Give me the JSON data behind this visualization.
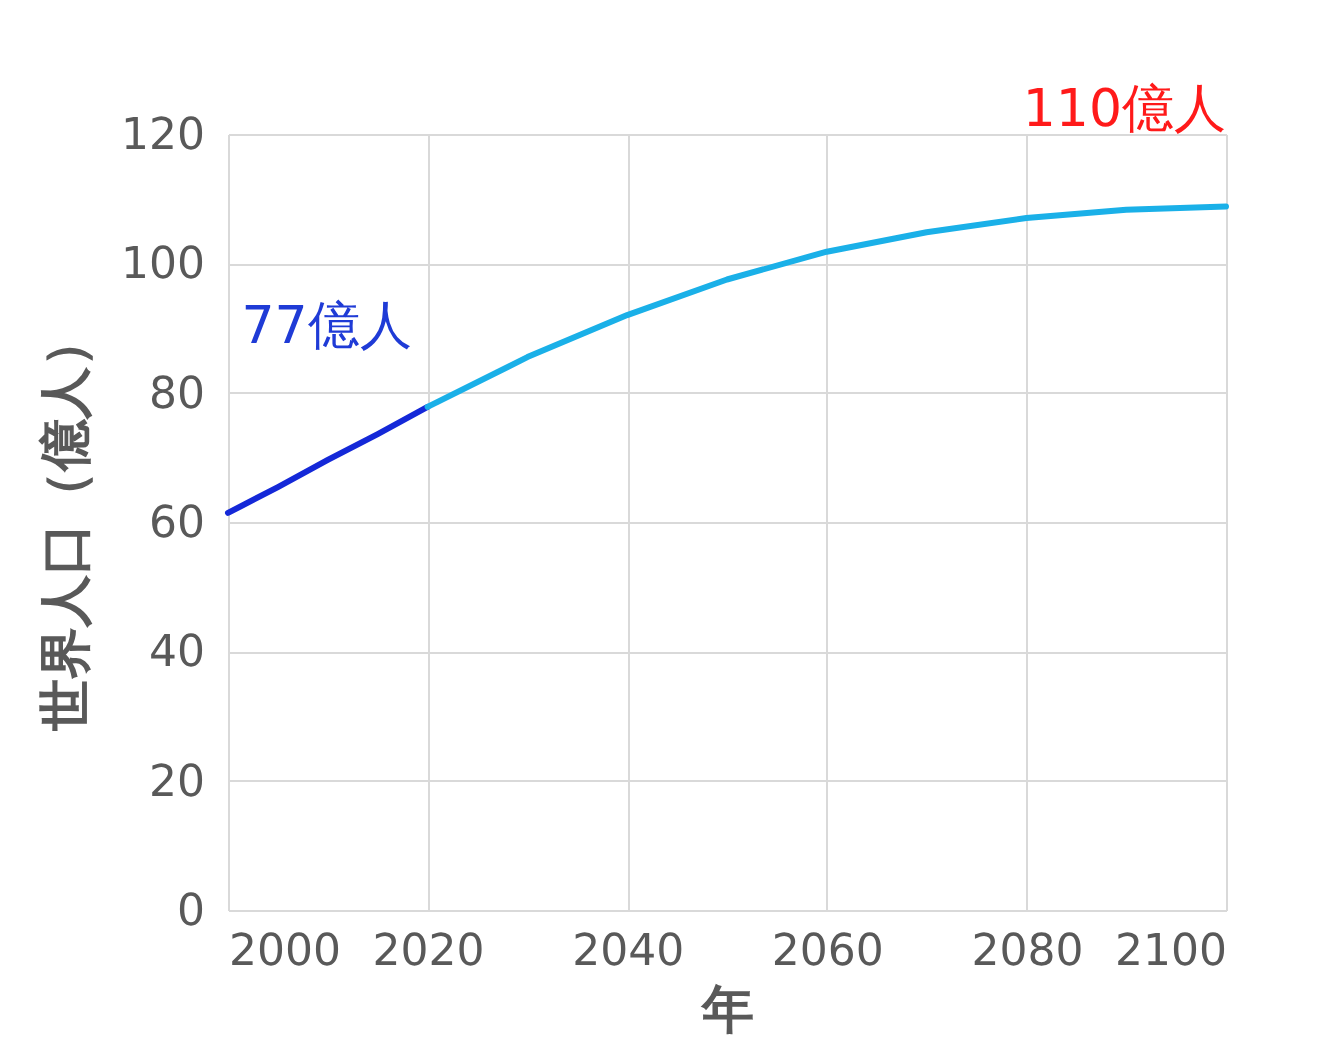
{
  "chart_data": {
    "type": "line",
    "xlabel": "年",
    "ylabel": "世界人口（億人）",
    "series": [
      {
        "color": "#1428d8",
        "x": [
          2000,
          2005,
          2010,
          2015,
          2020
        ],
        "values": [
          61.4,
          65.4,
          69.6,
          73.6,
          77.8
        ]
      },
      {
        "color": "#1ab0e8",
        "x": [
          2020,
          2030,
          2040,
          2050,
          2060,
          2070,
          2080,
          2090,
          2100
        ],
        "values": [
          77.8,
          85.5,
          92,
          97.5,
          101.8,
          104.8,
          107,
          108.3,
          108.8
        ]
      }
    ],
    "annotations": [
      {
        "text": "77億人",
        "x": 2020,
        "y": 77.8
      },
      {
        "text": "110億人",
        "x": 2100,
        "y": 108.8
      }
    ],
    "xlim": [
      2000,
      2100
    ],
    "xticks": [
      2000,
      2020,
      2040,
      2060,
      2080,
      2100
    ],
    "ylim": [
      0,
      120
    ],
    "yticks": [
      0,
      20,
      40,
      60,
      80,
      100,
      120
    ],
    "grid": true,
    "marker": "none",
    "line_style": "solid"
  }
}
